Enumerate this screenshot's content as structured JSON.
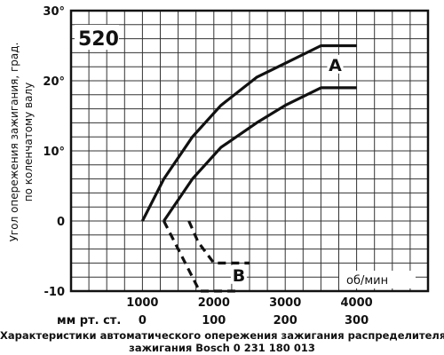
{
  "chart_data": {
    "type": "line",
    "xlim": [
      0,
      5000
    ],
    "ylim": [
      -10,
      30
    ],
    "grid": true,
    "ylabel_lines": [
      "Угол опережения зажигания, град.",
      "по коленчатому валу"
    ],
    "x_ticks": [
      {
        "value": 1000,
        "label": "1000"
      },
      {
        "value": 2000,
        "label": "2000"
      },
      {
        "value": 3000,
        "label": "3000"
      },
      {
        "value": 4000,
        "label": "4000"
      }
    ],
    "y_ticks": [
      {
        "value": 30,
        "label": "30°"
      },
      {
        "value": 20,
        "label": "20°"
      },
      {
        "value": 10,
        "label": "10°"
      },
      {
        "value": 0,
        "label": "0"
      },
      {
        "value": -10,
        "label": "-10"
      }
    ],
    "pressure_scale": {
      "unit_label": "мм рт. ст.",
      "ticks": [
        {
          "rpm": 1000,
          "label": "0"
        },
        {
          "rpm": 2000,
          "label": "100"
        },
        {
          "rpm": 3000,
          "label": "200"
        },
        {
          "rpm": 4000,
          "label": "300"
        }
      ]
    },
    "units_label": "об/мин",
    "model_label": "520",
    "series": [
      {
        "name": "A",
        "style": "solid",
        "points": [
          [
            1000,
            0
          ],
          [
            1300,
            6
          ],
          [
            1700,
            12
          ],
          [
            2100,
            16.5
          ],
          [
            2600,
            20.5
          ],
          [
            3000,
            22.5
          ],
          [
            3500,
            25
          ],
          [
            4000,
            25
          ]
        ]
      },
      {
        "name": "",
        "style": "solid",
        "points": [
          [
            1300,
            0
          ],
          [
            1700,
            6
          ],
          [
            2100,
            10.5
          ],
          [
            2600,
            14
          ],
          [
            3000,
            16.5
          ],
          [
            3500,
            19
          ],
          [
            4000,
            19
          ]
        ]
      },
      {
        "name": "B",
        "style": "dashed",
        "points": [
          [
            1300,
            0
          ],
          [
            1500,
            -4
          ],
          [
            1700,
            -8
          ],
          [
            1800,
            -10
          ],
          [
            2300,
            -10
          ]
        ]
      },
      {
        "name": "",
        "style": "dashed",
        "points": [
          [
            1650,
            0
          ],
          [
            1780,
            -3
          ],
          [
            2000,
            -6
          ],
          [
            2500,
            -6
          ]
        ]
      }
    ],
    "curve_labels": [
      {
        "text": "A",
        "x": 3700,
        "y": 22.3
      },
      {
        "text": "B",
        "x": 2350,
        "y": -7.7
      }
    ]
  },
  "caption_lines": [
    "Характеристики автоматического опережения зажигания распределителя",
    "зажигания Bosch 0 231 180 013"
  ]
}
